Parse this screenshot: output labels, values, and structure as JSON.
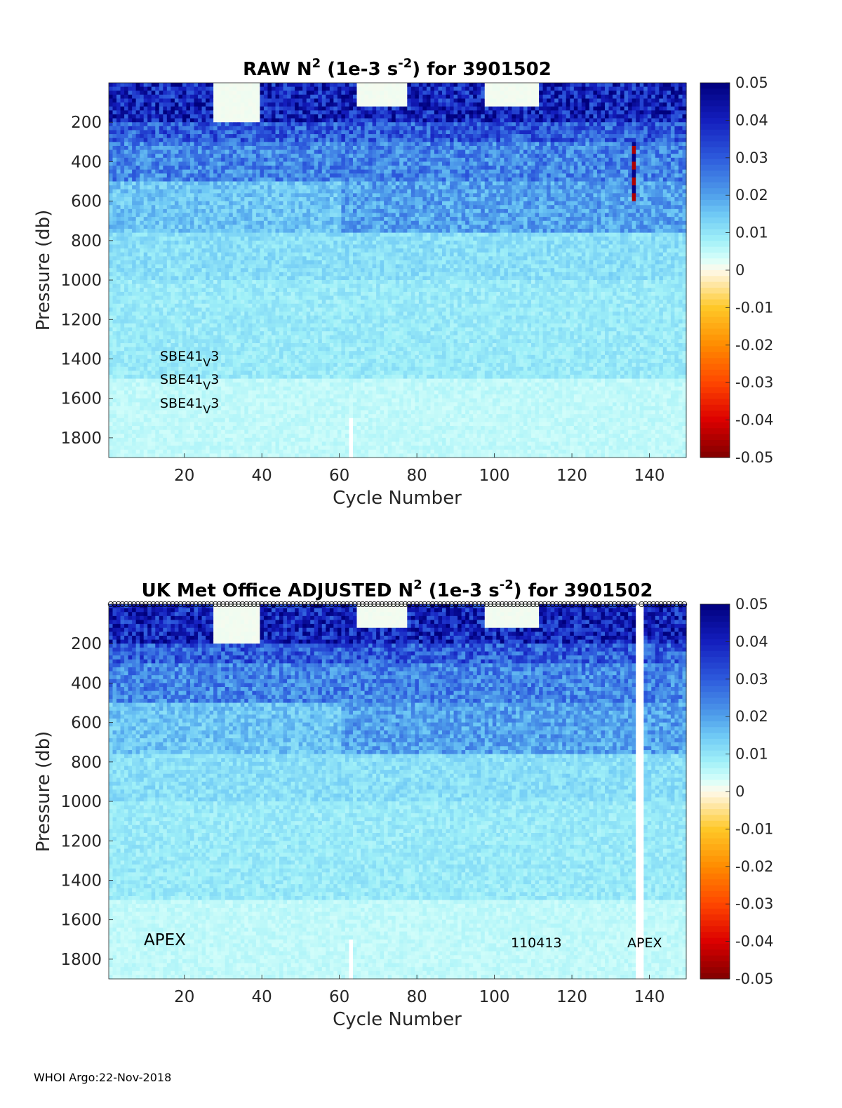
{
  "footer": "WHOI Argo:22-Nov-2018",
  "colorbar": {
    "ticks": [
      "0.05",
      "0.04",
      "0.03",
      "0.02",
      "0.01",
      "0",
      "-0.01",
      "-0.02",
      "-0.03",
      "-0.04",
      "-0.05"
    ],
    "range": [
      -0.05,
      0.05
    ]
  },
  "chart_data": [
    {
      "type": "heatmap",
      "title": "RAW N² (1e-3 s⁻²) for 3901502",
      "title_parts": {
        "pre": "RAW N",
        "sup1": "2",
        "mid": " (1e-3 s",
        "sup2": "-2",
        "post": ") for 3901502"
      },
      "xlabel": "Cycle Number",
      "ylabel": "Pressure (db)",
      "xlim": [
        1,
        149
      ],
      "ylim": [
        0,
        1900
      ],
      "y_reversed": true,
      "xticks": [
        "20",
        "40",
        "60",
        "80",
        "100",
        "120",
        "140"
      ],
      "yticks": [
        "200",
        "400",
        "600",
        "800",
        "1000",
        "1200",
        "1400",
        "1600",
        "1800"
      ],
      "clim": [
        -0.05,
        0.05
      ],
      "colormap": "blue-cyan-white-yellow-red",
      "gaps": [
        {
          "cycle": 63,
          "from": 1700,
          "to": 1900
        }
      ],
      "anomalies": [
        {
          "cycle": 136,
          "from": 300,
          "to": 600,
          "note": "alternating red/navy spikes"
        }
      ],
      "annotations": [
        "SBE41",
        "V",
        "3",
        "SBE41",
        "V",
        "3",
        "SBE41",
        "V",
        "3"
      ]
    },
    {
      "type": "heatmap",
      "title": "UK Met Office ADJUSTED N² (1e-3 s⁻²) for 3901502",
      "title_parts": {
        "pre": "UK Met Office  ADJUSTED N",
        "sup1": "2",
        "mid": " (1e-3 s",
        "sup2": "-2",
        "post": ") for 3901502"
      },
      "xlabel": "Cycle Number",
      "ylabel": "Pressure (db)",
      "xlim": [
        1,
        149
      ],
      "ylim": [
        0,
        1900
      ],
      "y_reversed": true,
      "xticks": [
        "20",
        "40",
        "60",
        "80",
        "100",
        "120",
        "140"
      ],
      "yticks": [
        "200",
        "400",
        "600",
        "800",
        "1000",
        "1200",
        "1400",
        "1600",
        "1800"
      ],
      "clim": [
        -0.05,
        0.05
      ],
      "colormap": "blue-cyan-white-yellow-red",
      "gaps": [
        {
          "cycle": 63,
          "from": 1700,
          "to": 1900
        },
        {
          "cycle": 137,
          "from": 0,
          "to": 1900
        },
        {
          "cycle": 138,
          "from": 0,
          "to": 1900
        }
      ],
      "qc_markers": "circles along top for each cycle",
      "annotations": {
        "left": "APEX",
        "mid": "110413",
        "right": "APEX"
      }
    }
  ]
}
